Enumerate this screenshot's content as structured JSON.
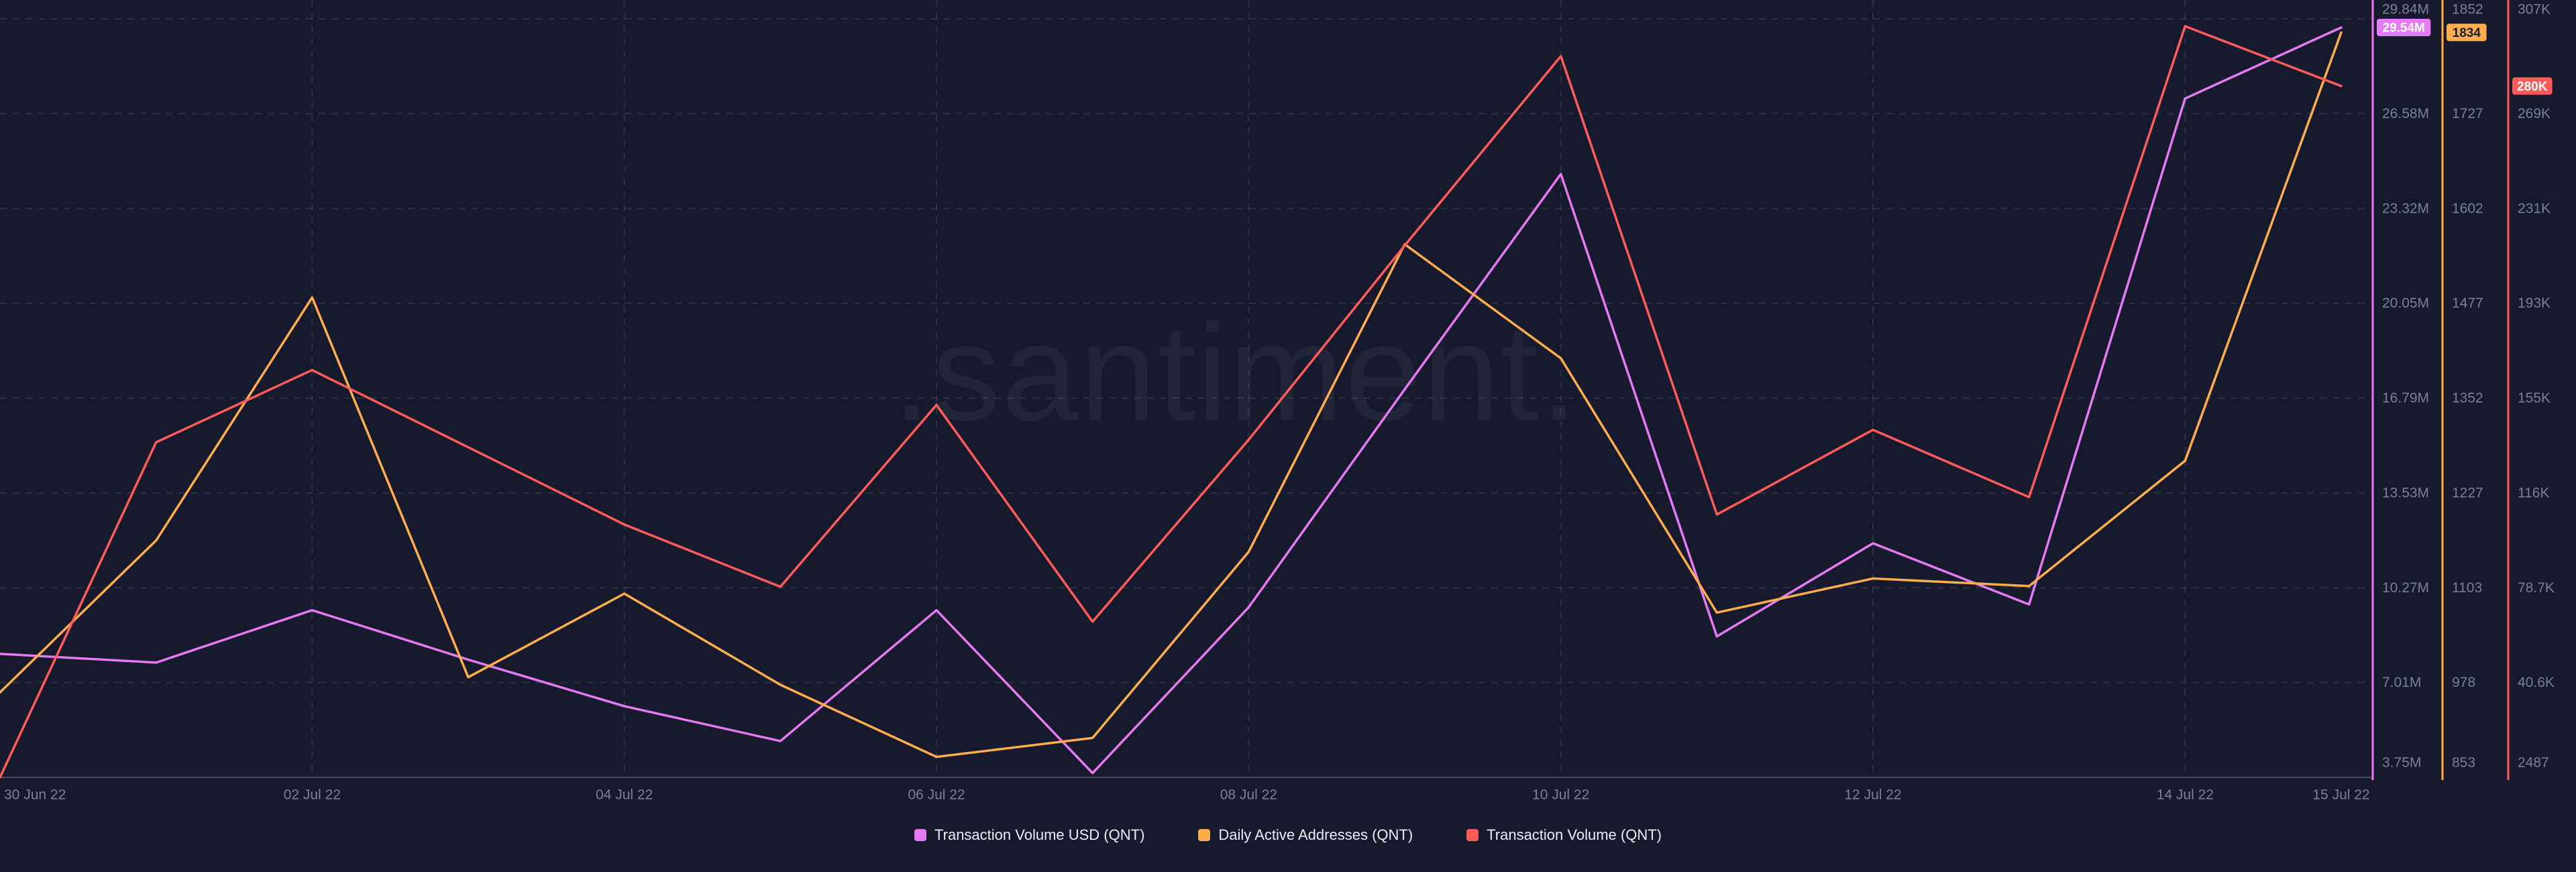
{
  "watermark": ".santiment.",
  "colors": {
    "background": "#171A2D",
    "grid": "rgba(255,255,255,0.10)",
    "axis_line": "rgba(255,255,255,0.22)",
    "tick_text": "#7B8099",
    "legend_text": "#ECEEF6"
  },
  "x_axis": {
    "labels": [
      {
        "text": "30 Jun 22",
        "day": 0,
        "align": "start"
      },
      {
        "text": "02 Jul 22",
        "day": 2,
        "align": "middle"
      },
      {
        "text": "04 Jul 22",
        "day": 4,
        "align": "middle"
      },
      {
        "text": "06 Jul 22",
        "day": 6,
        "align": "middle"
      },
      {
        "text": "08 Jul 22",
        "day": 8,
        "align": "middle"
      },
      {
        "text": "10 Jul 22",
        "day": 10,
        "align": "middle"
      },
      {
        "text": "12 Jul 22",
        "day": 12,
        "align": "middle"
      },
      {
        "text": "14 Jul 22",
        "day": 14,
        "align": "middle"
      },
      {
        "text": "15 Jul 22",
        "day": 15,
        "align": "middle"
      }
    ]
  },
  "chart_data": {
    "type": "line",
    "title": "",
    "grid": "dashed",
    "legend_position": "bottom-center",
    "x": [
      "30 Jun 22",
      "01 Jul 22",
      "02 Jul 22",
      "03 Jul 22",
      "04 Jul 22",
      "05 Jul 22",
      "06 Jul 22",
      "07 Jul 22",
      "08 Jul 22",
      "09 Jul 22",
      "10 Jul 22",
      "11 Jul 22",
      "12 Jul 22",
      "13 Jul 22",
      "14 Jul 22",
      "15 Jul 22"
    ],
    "vertical_gridline_days": [
      2,
      4,
      6,
      8,
      10,
      12,
      14
    ],
    "series": [
      {
        "name": "Transaction Volume USD (QNT)",
        "color": "#E57AF2",
        "badge": "29.54M",
        "badge_text_color": "#FFFFFF",
        "axis_min": 3750000,
        "axis_max": 29840000,
        "axis_ticks": [
          "29.84M",
          "26.58M",
          "23.32M",
          "20.05M",
          "16.79M",
          "13.53M",
          "10.27M",
          "7.01M",
          "3.75M"
        ],
        "values": [
          8000000,
          7700000,
          9500000,
          7800000,
          6200000,
          5000000,
          9500000,
          3900000,
          9600000,
          17100000,
          24500000,
          8600000,
          11800000,
          9700000,
          27100000,
          29540000
        ]
      },
      {
        "name": "Daily Active Addresses (QNT)",
        "color": "#FFAD4D",
        "badge": "1834",
        "badge_text_color": "#1B1E30",
        "axis_min": 853,
        "axis_max": 1852,
        "axis_ticks": [
          "1852",
          "1727",
          "1602",
          "1477",
          "1352",
          "1227",
          "1103",
          "978",
          "853"
        ],
        "values": [
          965,
          1165,
          1485,
          985,
          1095,
          975,
          880,
          905,
          1150,
          1555,
          1405,
          1070,
          1115,
          1105,
          1270,
          1834
        ]
      },
      {
        "name": "Transaction Volume (QNT)",
        "color": "#FF5B5B",
        "badge": "280K",
        "badge_text_color": "#FFFFFF",
        "axis_min": 2487,
        "axis_max": 307000,
        "axis_ticks": [
          "307K",
          "269K",
          "231K",
          "193K",
          "155K",
          "116K",
          "78.7K",
          "40.6K",
          "2487"
        ],
        "values": [
          2487,
          137000,
          166000,
          135000,
          104000,
          79000,
          152000,
          65000,
          138000,
          216000,
          292000,
          108000,
          142000,
          115000,
          304000,
          280000
        ]
      }
    ]
  }
}
